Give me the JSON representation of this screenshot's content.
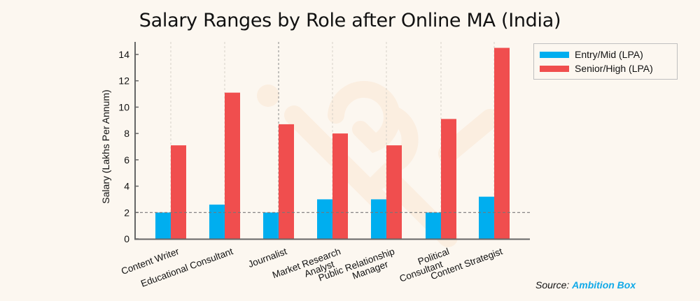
{
  "chart_data": {
    "type": "bar",
    "title": "Salary Ranges by Role after Online MA (India)",
    "xlabel": "",
    "ylabel": "Salary (Lakhs Per Annum)",
    "ylim": [
      0,
      15
    ],
    "yticks": [
      0,
      2,
      4,
      6,
      8,
      10,
      12,
      14
    ],
    "categories": [
      "Content Writer",
      "Educational Consultant",
      "Journalist",
      "Market Research Analyst",
      "Public Relationship Manager",
      "Political Consultant",
      "Content Strategist"
    ],
    "category_label_lines": [
      [
        "Content Writer"
      ],
      [
        "Educational Consultant"
      ],
      [
        "Journalist"
      ],
      [
        "Market Research",
        "Analyst"
      ],
      [
        "Public Relationship",
        "Manager"
      ],
      [
        "Political",
        "Consultant"
      ],
      [
        "Content Strategist"
      ]
    ],
    "series": [
      {
        "name": "Entry/Mid (LPA)",
        "color": "#00aeef",
        "values": [
          2.0,
          2.6,
          2.0,
          3.0,
          3.0,
          2.0,
          3.2
        ]
      },
      {
        "name": "Senior/High (LPA)",
        "color": "#f04e4e",
        "values": [
          7.1,
          11.1,
          8.7,
          8.0,
          7.1,
          9.1,
          14.5
        ]
      }
    ],
    "reference_line": {
      "y": 2,
      "style": "dashed"
    },
    "grid": "vertical dashed lines at category centers",
    "legend_position": "upper right, outside plot"
  },
  "legend": {
    "items": [
      {
        "label": "Entry/Mid (LPA)",
        "color": "#00aeef"
      },
      {
        "label": "Senior/High (LPA)",
        "color": "#f04e4e"
      }
    ]
  },
  "source": {
    "prefix": "Source:",
    "name": "Ambition Box"
  }
}
